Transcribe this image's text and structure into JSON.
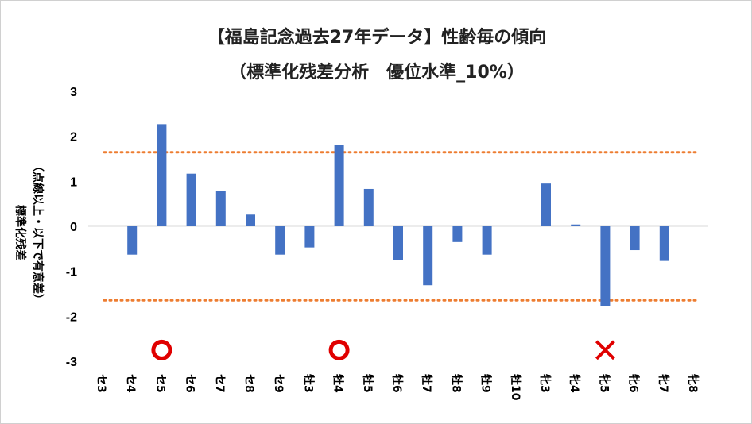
{
  "chart_data": {
    "type": "bar",
    "title": "【福島記念過去27年データ】性齢毎の傾向",
    "subtitle": "（標準化残差分析　優位水準_10%）",
    "ylabel": "標準化残差",
    "ylabel_note": "（点線以上・以下で有意差）",
    "ylim": [
      -3,
      3
    ],
    "yticks": [
      "3",
      "2",
      "1",
      "0",
      "-1",
      "-2",
      "-3"
    ],
    "categories": [
      "セ3",
      "セ4",
      "セ5",
      "セ6",
      "セ7",
      "セ8",
      "セ9",
      "牡3",
      "牡4",
      "牡5",
      "牡6",
      "牡7",
      "牡8",
      "牡9",
      "牡10",
      "牝3",
      "牝4",
      "牝5",
      "牝6",
      "牝7",
      "牝8"
    ],
    "values": [
      0,
      -0.63,
      2.27,
      1.17,
      0.78,
      0.26,
      -0.63,
      -0.47,
      1.8,
      0.83,
      -0.75,
      -1.31,
      -0.35,
      -0.63,
      0,
      0.95,
      0.04,
      -1.78,
      -0.53,
      -0.77,
      0
    ],
    "thresholds": [
      1.645,
      -1.645
    ],
    "markers": [
      {
        "category": "セ5",
        "symbol": "circle"
      },
      {
        "category": "牡4",
        "symbol": "circle"
      },
      {
        "category": "牝5",
        "symbol": "cross"
      }
    ],
    "colors": {
      "bar": "#4472c4",
      "threshold": "#ed7d31",
      "marker": "#e00000"
    }
  }
}
